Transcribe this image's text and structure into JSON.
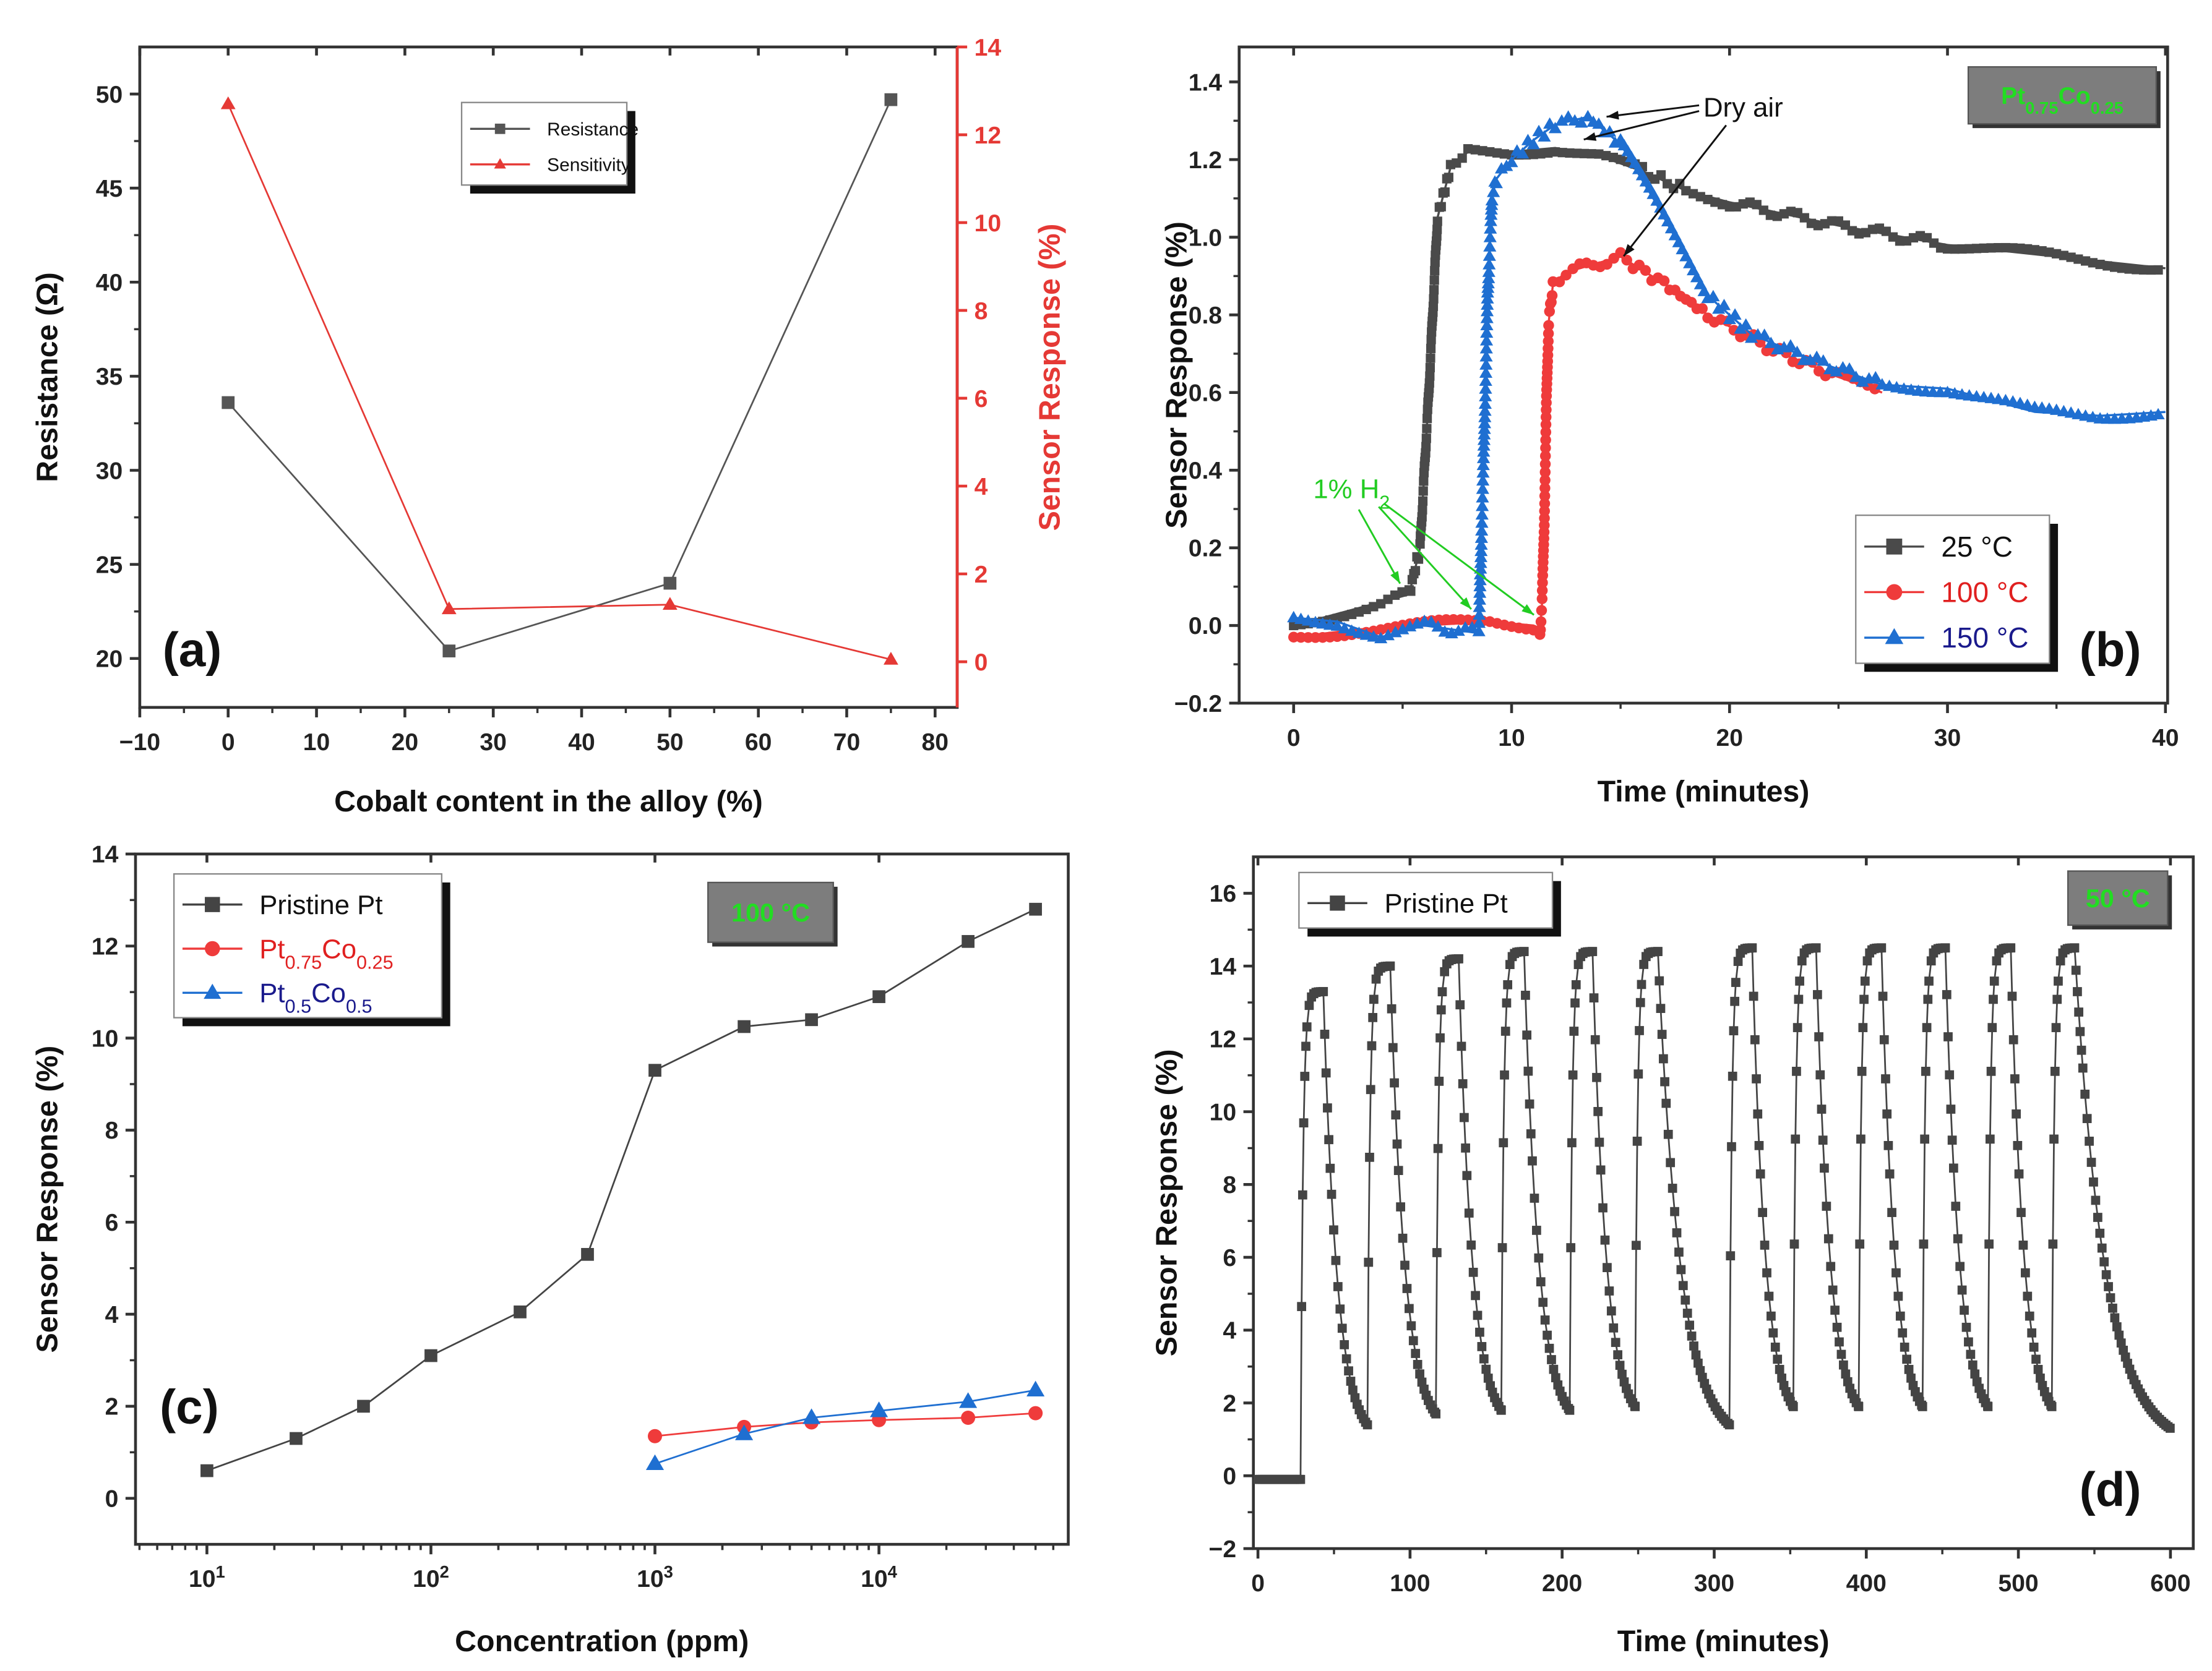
{
  "chart_data": [
    {
      "id": "a",
      "type": "line",
      "panel_label": "(a)",
      "xlabel": "Cobalt content in the alloy (%)",
      "ylabel": "Resistance (Ω)",
      "y2label": "Sensor Response (%)",
      "xlim": [
        -10,
        82.5
      ],
      "ylim": [
        17.4,
        52.5
      ],
      "y2lim": [
        -1.04,
        14
      ],
      "xticks": [
        -10,
        0,
        10,
        20,
        30,
        40,
        50,
        60,
        70,
        80
      ],
      "yticks": [
        20,
        25,
        30,
        35,
        40,
        45,
        50
      ],
      "y2ticks": [
        0,
        2,
        4,
        6,
        8,
        10,
        12,
        14
      ],
      "legend_position": "top-center",
      "series": [
        {
          "name": "Resistance",
          "axis": "left",
          "color": "#555555",
          "marker": "square",
          "points": [
            [
              0,
              33.6
            ],
            [
              25,
              20.4
            ],
            [
              50,
              24.0
            ],
            [
              75,
              49.7
            ]
          ]
        },
        {
          "name": "Sensitivity",
          "axis": "right",
          "color": "#e53935",
          "marker": "triangle",
          "points": [
            [
              0,
              12.7
            ],
            [
              25,
              1.2
            ],
            [
              50,
              1.3
            ],
            [
              75,
              0.05
            ]
          ]
        }
      ]
    },
    {
      "id": "b",
      "type": "line",
      "panel_label": "(b)",
      "xlabel": "Time (minutes)",
      "ylabel": "Sensor Response (%)",
      "xlim": [
        -2.5,
        40.1
      ],
      "ylim": [
        -0.2,
        1.49
      ],
      "xticks": [
        0,
        10,
        20,
        30,
        40
      ],
      "yticks": [
        -0.2,
        0.0,
        0.2,
        0.4,
        0.6,
        0.8,
        1.0,
        1.2,
        1.4
      ],
      "ytick_labels": [
        "−0.2",
        "0.0",
        "0.2",
        "0.4",
        "0.6",
        "0.8",
        "1.0",
        "1.2",
        "1.4"
      ],
      "badge": {
        "parts": [
          [
            "Pt",
            ""
          ],
          [
            "0.75",
            "sub"
          ],
          [
            "Co",
            ""
          ],
          [
            "0.25",
            "sub"
          ]
        ],
        "text_color": "#22dd22",
        "bg_color": "#7d7d7d"
      },
      "annotations": {
        "dry_air": "Dry air",
        "h2": {
          "parts": [
            [
              "1% H",
              ""
            ],
            [
              "2",
              "sub"
            ]
          ],
          "color": "#22cc22"
        }
      },
      "legend_position": "bottom-right",
      "series": [
        {
          "name": "25 °C",
          "color": "#4a4a4a",
          "text_color": "#111111",
          "marker": "square",
          "points": [
            [
              0,
              0.0
            ],
            [
              2,
              0.03
            ],
            [
              4,
              0.06
            ],
            [
              5.3,
              0.08
            ],
            [
              5.8,
              0.2
            ],
            [
              6.2,
              0.6
            ],
            [
              6.6,
              1.05
            ],
            [
              7.2,
              1.18
            ],
            [
              8,
              1.22
            ],
            [
              10,
              1.22
            ],
            [
              12,
              1.23
            ],
            [
              14,
              1.21
            ],
            [
              16,
              1.17
            ],
            [
              18,
              1.12
            ],
            [
              20,
              1.09
            ],
            [
              25,
              1.03
            ],
            [
              30,
              0.98
            ],
            [
              35,
              0.95
            ],
            [
              40,
              0.92
            ]
          ]
        },
        {
          "name": "100 °C",
          "color": "#ef3b3b",
          "text_color": "#e02020",
          "marker": "circle",
          "points": [
            [
              0,
              -0.03
            ],
            [
              3,
              -0.01
            ],
            [
              6,
              0.0
            ],
            [
              9,
              0.01
            ],
            [
              11,
              0.0
            ],
            [
              11.3,
              -0.02
            ],
            [
              11.4,
              0.06
            ],
            [
              11.5,
              0.27
            ],
            [
              11.6,
              0.58
            ],
            [
              11.7,
              0.78
            ],
            [
              11.9,
              0.88
            ],
            [
              12.5,
              0.91
            ],
            [
              15,
              0.95
            ],
            [
              17,
              0.88
            ],
            [
              19,
              0.8
            ],
            [
              22,
              0.71
            ],
            [
              25,
              0.64
            ],
            [
              27,
              0.6
            ]
          ]
        },
        {
          "name": "150 °C",
          "color": "#1f6fd1",
          "text_color": "#1a1a8c",
          "marker": "triangle",
          "points": [
            [
              0,
              0.02
            ],
            [
              2,
              0.01
            ],
            [
              4,
              -0.03
            ],
            [
              6,
              0.0
            ],
            [
              8.5,
              -0.02
            ],
            [
              8.6,
              0.2
            ],
            [
              8.8,
              0.6
            ],
            [
              8.9,
              0.85
            ],
            [
              9.1,
              1.1
            ],
            [
              9.3,
              1.15
            ],
            [
              10,
              1.2
            ],
            [
              11,
              1.25
            ],
            [
              12,
              1.29
            ],
            [
              13.5,
              1.31
            ],
            [
              15,
              1.24
            ],
            [
              16.5,
              1.1
            ],
            [
              18,
              0.95
            ],
            [
              19,
              0.85
            ],
            [
              21,
              0.75
            ],
            [
              24,
              0.68
            ],
            [
              27,
              0.62
            ],
            [
              30,
              0.61
            ],
            [
              32,
              0.58
            ],
            [
              34,
              0.55
            ],
            [
              37,
              0.54
            ],
            [
              40,
              0.55
            ]
          ]
        }
      ]
    },
    {
      "id": "c",
      "type": "line",
      "panel_label": "(c)",
      "xlabel": "Concentration (ppm)",
      "ylabel": "Sensor Response (%)",
      "xscale": "log",
      "xlim": [
        4.8,
        70000
      ],
      "ylim": [
        -1,
        14
      ],
      "xticks": [
        10,
        100,
        1000,
        10000
      ],
      "xtick_labels": [
        [
          "10",
          "1"
        ],
        [
          "10",
          "2"
        ],
        [
          "10",
          "3"
        ],
        [
          "10",
          "4"
        ]
      ],
      "yticks": [
        0,
        2,
        4,
        6,
        8,
        10,
        12,
        14
      ],
      "badge": {
        "parts": [
          [
            "100 °C",
            ""
          ]
        ],
        "text_color": "#22dd22",
        "bg_color": "#7d7d7d"
      },
      "legend_position": "top-left",
      "series": [
        {
          "name": "Pristine Pt",
          "label_parts": [
            [
              "Pristine Pt",
              ""
            ]
          ],
          "color": "#444444",
          "text_color": "#111111",
          "marker": "square",
          "points": [
            [
              10,
              0.6
            ],
            [
              25,
              1.3
            ],
            [
              50,
              2.0
            ],
            [
              100,
              3.1
            ],
            [
              250,
              4.05
            ],
            [
              500,
              5.3
            ],
            [
              1000,
              9.3
            ],
            [
              2500,
              10.25
            ],
            [
              5000,
              10.4
            ],
            [
              10000,
              10.9
            ],
            [
              25000,
              12.1
            ],
            [
              50000,
              12.8
            ]
          ]
        },
        {
          "name": "Pt0.75Co0.25",
          "label_parts": [
            [
              "Pt",
              ""
            ],
            [
              "0.75",
              "sub"
            ],
            [
              "Co",
              ""
            ],
            [
              "0.25",
              "sub"
            ]
          ],
          "color": "#ef3b3b",
          "text_color": "#e02020",
          "marker": "circle",
          "points": [
            [
              1000,
              1.35
            ],
            [
              2500,
              1.55
            ],
            [
              5000,
              1.65
            ],
            [
              10000,
              1.7
            ],
            [
              25000,
              1.75
            ],
            [
              50000,
              1.85
            ]
          ]
        },
        {
          "name": "Pt0.5Co0.5",
          "label_parts": [
            [
              "Pt",
              ""
            ],
            [
              "0.5",
              "sub"
            ],
            [
              "Co",
              ""
            ],
            [
              "0.5",
              "sub"
            ]
          ],
          "color": "#1f6fd1",
          "text_color": "#1a1a8c",
          "marker": "triangle",
          "points": [
            [
              1000,
              0.75
            ],
            [
              2500,
              1.4
            ],
            [
              5000,
              1.75
            ],
            [
              10000,
              1.9
            ],
            [
              25000,
              2.1
            ],
            [
              50000,
              2.35
            ]
          ]
        }
      ]
    },
    {
      "id": "d",
      "type": "line",
      "panel_label": "(d)",
      "xlabel": "Time (minutes)",
      "ylabel": "Sensor Response (%)",
      "xlim": [
        -3,
        615
      ],
      "ylim": [
        -2,
        17
      ],
      "xticks": [
        0,
        100,
        200,
        300,
        400,
        500,
        600
      ],
      "yticks": [
        -2,
        0,
        2,
        4,
        6,
        8,
        10,
        12,
        14,
        16
      ],
      "ytick_labels": [
        "−2",
        "0",
        "2",
        "4",
        "6",
        "8",
        "10",
        "12",
        "14",
        "16"
      ],
      "badge": {
        "parts": [
          [
            "50 °C",
            ""
          ]
        ],
        "text_color": "#22dd22",
        "bg_color": "#7d7d7d"
      },
      "legend_position": "top-left",
      "baseline": -0.1,
      "series": [
        {
          "name": "Pristine Pt",
          "color": "#444444",
          "text_color": "#111111",
          "marker": "square",
          "cycles": [
            {
              "on": 28,
              "off": 43,
              "end": 72,
              "peak": 13.3,
              "min": 1.4
            },
            {
              "on": 72,
              "off": 87,
              "end": 117,
              "peak": 14.0,
              "min": 1.7
            },
            {
              "on": 117,
              "off": 132,
              "end": 160,
              "peak": 14.2,
              "min": 1.8
            },
            {
              "on": 160,
              "off": 175,
              "end": 205,
              "peak": 14.4,
              "min": 1.8
            },
            {
              "on": 205,
              "off": 220,
              "end": 248,
              "peak": 14.4,
              "min": 1.9
            },
            {
              "on": 248,
              "off": 263,
              "end": 310,
              "peak": 14.4,
              "min": 1.4
            },
            {
              "on": 310,
              "off": 325,
              "end": 352,
              "peak": 14.5,
              "min": 1.9
            },
            {
              "on": 352,
              "off": 367,
              "end": 395,
              "peak": 14.5,
              "min": 1.9
            },
            {
              "on": 395,
              "off": 410,
              "end": 437,
              "peak": 14.5,
              "min": 1.9
            },
            {
              "on": 437,
              "off": 452,
              "end": 480,
              "peak": 14.5,
              "min": 1.9
            },
            {
              "on": 480,
              "off": 495,
              "end": 522,
              "peak": 14.5,
              "min": 1.9
            },
            {
              "on": 522,
              "off": 537,
              "end": 600,
              "peak": 14.5,
              "min": 1.3
            }
          ]
        }
      ]
    }
  ]
}
